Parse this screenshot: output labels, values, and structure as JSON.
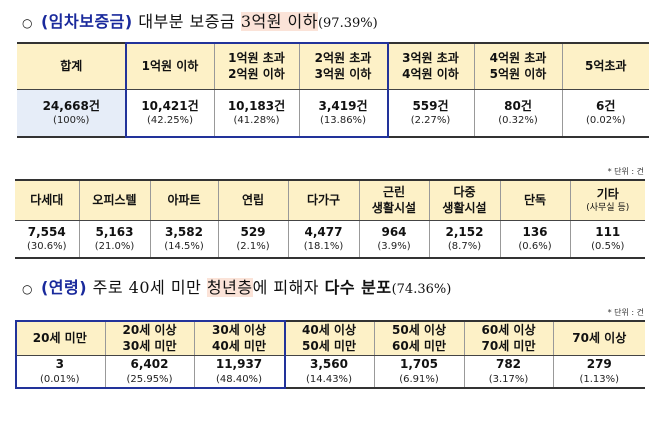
{
  "section1": {
    "bullet": "○",
    "key": "(임차보증금)",
    "text1": "대부분 보증금",
    "highlight": "3억원 이하",
    "pct": "(97.39%)",
    "headers": [
      "합계",
      "1억원 이하",
      "1억원 초과\n2억원 이하",
      "2억원 초과\n3억원 이하",
      "3억원 초과\n4억원 이하",
      "4억원 초과\n5억원 이하",
      "5억초과"
    ],
    "counts": [
      "24,668건",
      "10,421건",
      "10,183건",
      "3,419건",
      "559건",
      "80건",
      "6건"
    ],
    "percents": [
      "(100%)",
      "(42.25%)",
      "(41.28%)",
      "(13.86%)",
      "(2.27%)",
      "(0.32%)",
      "(0.02%)"
    ]
  },
  "section2": {
    "unit": "* 단위 : 건",
    "headers": [
      "다세대",
      "오피스텔",
      "아파트",
      "연립",
      "다가구",
      "근린\n생활시설",
      "다중\n생활시설",
      "단독",
      "기타"
    ],
    "header_sub": "(사무실 등)",
    "counts": [
      "7,554",
      "5,163",
      "3,582",
      "529",
      "4,477",
      "964",
      "2,152",
      "136",
      "111"
    ],
    "percents": [
      "(30.6%)",
      "(21.0%)",
      "(14.5%)",
      "(2.1%)",
      "(18.1%)",
      "(3.9%)",
      "(8.7%)",
      "(0.6%)",
      "(0.5%)"
    ]
  },
  "section3": {
    "bullet": "○",
    "key": "(연령)",
    "text1": "주로 40세 미만",
    "highlight": "청년층",
    "text2": "에 피해자",
    "bold": "다수 분포",
    "pct": "(74.36%)",
    "unit": "* 단위 : 건",
    "headers": [
      "20세 미만",
      "20세 이상\n30세 미만",
      "30세 이상\n40세 미만",
      "40세 이상\n50세 미만",
      "50세 이상\n60세 미만",
      "60세 이상\n70세 미만",
      "70세 이상"
    ],
    "counts": [
      "3",
      "6,402",
      "11,937",
      "3,560",
      "1,705",
      "782",
      "279"
    ],
    "percents": [
      "(0.01%)",
      "(25.95%)",
      "(48.40%)",
      "(14.43%)",
      "(6.91%)",
      "(3.17%)",
      "(1.13%)"
    ]
  }
}
